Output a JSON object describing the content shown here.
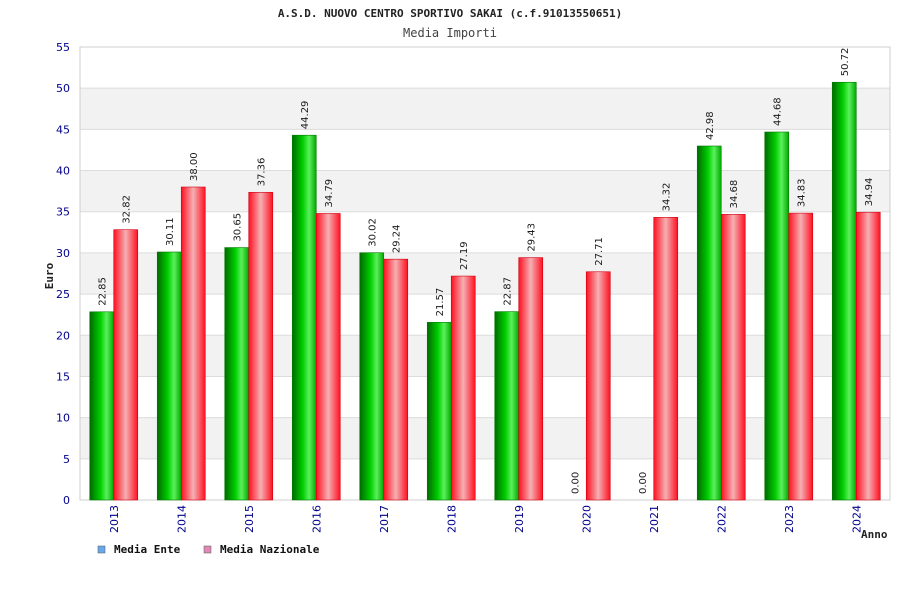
{
  "chart_data": {
    "type": "bar",
    "title": "A.S.D. NUOVO CENTRO SPORTIVO SAKAI (c.f.91013550651)",
    "subtitle": "Media Importi",
    "xlabel": "Anno",
    "ylabel": "Euro",
    "categories": [
      "2013",
      "2014",
      "2015",
      "2016",
      "2017",
      "2018",
      "2019",
      "2020",
      "2021",
      "2022",
      "2023",
      "2024"
    ],
    "series": [
      {
        "name": "Media Ente",
        "values": [
          22.85,
          30.11,
          30.65,
          44.29,
          30.02,
          21.57,
          22.87,
          0,
          0,
          42.98,
          44.68,
          50.72
        ],
        "labels": [
          "22.85",
          "30.11",
          "30.65",
          "44.29",
          "30.02",
          "21.57",
          "22.87",
          "0.00",
          "0.00",
          "42.98",
          "44.68",
          "50.72"
        ]
      },
      {
        "name": "Media Nazionale",
        "values": [
          32.82,
          38.0,
          37.36,
          34.79,
          29.24,
          27.19,
          29.43,
          27.71,
          34.32,
          34.68,
          34.83,
          34.94
        ],
        "labels": [
          "32.82",
          "38.00",
          "37.36",
          "34.79",
          "29.24",
          "27.19",
          "29.43",
          "27.71",
          "34.32",
          "34.68",
          "34.83",
          "34.94"
        ]
      }
    ],
    "ylim": [
      0,
      55
    ],
    "yticks": [
      "0",
      "5",
      "10",
      "15",
      "20",
      "25",
      "30",
      "35",
      "40",
      "45",
      "50",
      "55"
    ],
    "grid": true,
    "legend_position": "bottom-left",
    "colors": {
      "ente_bar": "#00c000",
      "nazionale_bar": "#ff3040",
      "ente_legend": "#6aa8ee",
      "nazionale_legend": "#e088b8",
      "tick_text": "#00008b",
      "band": "#f2f2f2"
    }
  }
}
